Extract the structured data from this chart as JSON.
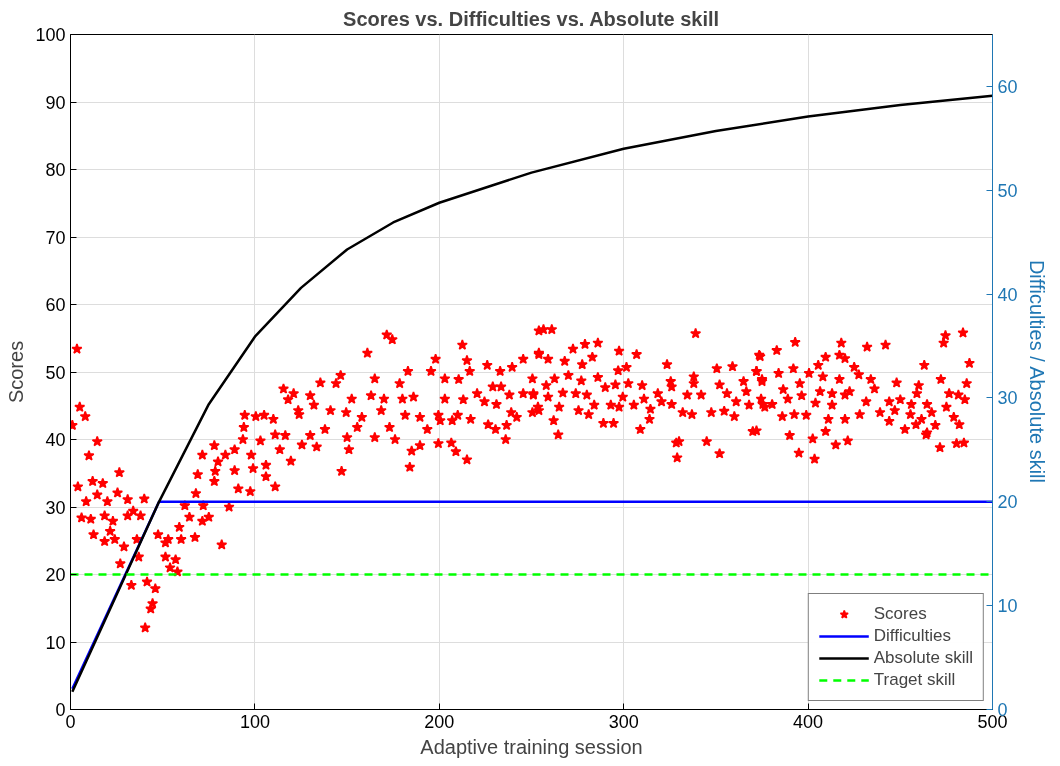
{
  "chart_data": {
    "type": "scatter",
    "title": "Scores vs. Difficulties vs. Absolute skill",
    "xlabel": "Adaptive training session",
    "ylabel": "Scores",
    "y2label": "Difficulties / Absolute skill",
    "xlim": [
      0,
      500
    ],
    "xticks": [
      0,
      100,
      200,
      300,
      400,
      500
    ],
    "ylim": [
      0,
      100
    ],
    "yticks": [
      0,
      10,
      20,
      30,
      40,
      50,
      60,
      70,
      80,
      90,
      100
    ],
    "y2lim": [
      0,
      65
    ],
    "y2ticks": [
      0,
      10,
      20,
      30,
      40,
      50,
      60
    ],
    "grid": true,
    "legend": "bottom right",
    "series": [
      {
        "name": "Scores",
        "color": "#ff0000",
        "marker": "star",
        "axis": "y",
        "x": [
          3.5,
          5,
          8,
          1,
          14.5,
          10,
          26.5,
          4,
          12,
          17.5,
          14.5,
          8.5,
          20,
          25.5,
          31,
          40,
          34,
          6,
          11,
          18.5,
          23,
          31,
          38,
          21.5,
          12.5,
          18.5,
          24,
          29,
          36,
          37,
          27,
          33,
          41.5,
          46,
          44.5,
          43.5,
          40.5,
          47.5,
          51.5,
          53,
          60,
          51.5,
          57,
          58,
          54,
          59,
          64.5,
          71.5,
          75,
          67.5,
          82,
          62,
          72,
          86,
          68,
          69,
          71.5,
          78,
          78.5,
          80,
          78,
          84,
          89,
          89,
          91,
          97.5,
          99,
          98,
          106,
          106,
          111,
          94,
          94.5,
          100.5,
          105,
          110,
          115.5,
          121,
          118,
          124,
          103,
          111,
          116.5,
          119.5,
          113.5,
          93.5,
          171.5,
          174.5,
          161,
          135.5,
          144,
          146.5,
          165,
          178.5,
          183,
          195.5,
          198,
          212.5,
          215,
          216.5,
          226,
          233,
          239.5,
          245.5,
          254,
          203,
          210.5,
          130,
          123.5,
          132,
          141,
          152.5,
          163,
          170,
          180,
          186,
          168.5,
          158,
          149.5,
          138,
          130,
          125.5,
          133.5,
          150,
          155.5,
          165,
          173,
          176,
          151,
          147,
          185,
          189.5,
          184,
          181.5,
          189.5,
          193.5,
          199.5,
          200.5,
          207,
          199.5,
          206.5,
          209,
          215,
          210,
          217,
          203,
          213,
          220.5,
          224.5,
          231,
          238,
          245.5,
          251,
          250.5,
          239,
          242,
          226.5,
          230.5,
          236.5,
          236,
          229,
          233.5,
          254,
          254,
          256.5,
          261,
          339,
          254,
          259,
          268,
          272.5,
          279,
          286,
          283,
          277.5,
          297.5,
          307,
          301.5,
          297,
          323.5,
          373.5,
          359,
          350.5,
          338,
          372,
          250.5,
          262.5,
          270,
          277,
          286,
          295.5,
          302.5,
          310,
          325.5,
          338,
          352,
          365,
          375,
          258,
          251,
          259,
          267,
          274,
          280,
          290,
          299.5,
          311,
          318.5,
          326,
          334.5,
          342,
          356,
          366.5,
          253.5,
          265,
          275.5,
          284,
          293,
          297.5,
          305.5,
          314.5,
          320.5,
          326,
          332,
          337,
          347.5,
          354.5,
          361,
          368,
          375.5,
          360,
          262,
          281,
          314,
          289,
          294.5,
          264.5,
          309,
          370,
          328.5,
          330,
          345,
          329,
          352,
          374,
          383,
          393,
          418,
          432,
          442,
          474.5,
          473.5,
          484,
          487.5,
          409.5,
          417,
          420,
          405.5,
          463,
          392,
          425,
          372,
          384,
          400.5,
          408,
          427.5,
          434,
          448,
          472,
          486,
          375,
          395.5,
          417,
          460,
          386.5,
          406.5,
          422.5,
          436,
          459,
          476.5,
          481.5,
          374.5,
          380.5,
          389,
          396.5,
          413,
          420,
          431.5,
          444,
          450,
          456,
          485,
          464.5,
          475,
          376.5,
          404,
          413,
          386,
          392.5,
          399,
          411,
          420,
          428,
          439,
          447,
          455.5,
          467,
          479,
          444,
          461.5,
          452.5,
          458.5,
          469,
          482,
          372,
          409.5,
          464.5,
          390,
          402.5,
          415,
          421.5,
          464,
          471.5,
          480.5,
          484.5,
          395,
          403.5
        ],
        "values": [
          53.4,
          44.8,
          43.4,
          42.1,
          39.7,
          37.6,
          35.1,
          33,
          33.8,
          33.5,
          31.8,
          30.8,
          30.8,
          32.1,
          31.1,
          31.2,
          29.4,
          28.4,
          28.2,
          28.7,
          27.9,
          28.7,
          28.7,
          26.4,
          25.9,
          24.9,
          25.2,
          24.1,
          25.2,
          22.6,
          21.6,
          18.4,
          18.9,
          17.9,
          15.7,
          14.9,
          12.1,
          25.9,
          24.7,
          25.2,
          25.2,
          22.6,
          22.2,
          20.4,
          21,
          27,
          28.5,
          27.9,
          28.5,
          25.5,
          24.4,
          30.2,
          30.2,
          30,
          32,
          34.8,
          37.7,
          33.8,
          35.3,
          36.7,
          39.1,
          37.7,
          38.5,
          35.4,
          32.7,
          32.3,
          35.7,
          37.7,
          36.2,
          34.5,
          33,
          41.8,
          43.6,
          43.4,
          43.6,
          43,
          47.5,
          46.8,
          45.9,
          43.7,
          39.8,
          40.7,
          40.6,
          36.8,
          38.5,
          40,
          55.5,
          54.8,
          52.8,
          48.4,
          48.3,
          49.5,
          49,
          48.3,
          50.1,
          50.1,
          51.9,
          54,
          51.7,
          50.1,
          51,
          50.1,
          50.7,
          51.9,
          52.8,
          49,
          48.9,
          46.5,
          44.3,
          45.1,
          44.3,
          46,
          46.5,
          46,
          46,
          46.3,
          44.3,
          43.3,
          44,
          41.5,
          40.6,
          39.2,
          38.9,
          40.3,
          41.8,
          40.3,
          41.8,
          40,
          38.5,
          35.3,
          38.3,
          39.1,
          35.9,
          43.6,
          43.3,
          41.5,
          43.6,
          42.8,
          42.8,
          39.4,
          39.5,
          38.2,
          37,
          43.6,
          43,
          46,
          45.9,
          46.8,
          45.6,
          45.2,
          46.6,
          46.8,
          46.6,
          44,
          44,
          43.3,
          42.2,
          41.5,
          42.1,
          40,
          47.8,
          47.8,
          56.1,
          44.3,
          56.3,
          56.3,
          55.7,
          52.6,
          51.9,
          51.6,
          53.4,
          54.1,
          54.3,
          52.2,
          51.1,
          53.1,
          52.6,
          50.7,
          50.2,
          51.1,
          52.5,
          50.8,
          50.5,
          49.3,
          50.1,
          49,
          49,
          49.5,
          48.7,
          49.2,
          48.1,
          48.3,
          48,
          48.6,
          48.3,
          48.1,
          48.6,
          48.9,
          48,
          46.8,
          46.3,
          46.9,
          46.8,
          46.6,
          47.7,
          46.3,
          46,
          46.8,
          47.8,
          46.6,
          46.6,
          46.8,
          47.1,
          44.8,
          44.8,
          44.3,
          45.1,
          45.1,
          44.8,
          45.1,
          44.5,
          45.6,
          45.2,
          44,
          43.7,
          44,
          44.2,
          45.6,
          45.1,
          45.2,
          43.4,
          42.8,
          43.7,
          43,
          42.4,
          42.4,
          40.7,
          41.5,
          41.2,
          39.5,
          39.7,
          39.7,
          37.3,
          37.9,
          52.3,
          53.2,
          54.4,
          54.3,
          53.7,
          54,
          55.4,
          54.3,
          55.8,
          51.3,
          52.2,
          52.5,
          52,
          51,
          51,
          50.5,
          50.7,
          50.1,
          49.8,
          49.8,
          49.3,
          49.6,
          48.9,
          48.4,
          48.9,
          48.3,
          48.6,
          48.3,
          48.9,
          48,
          47.4,
          47.1,
          47.1,
          47.5,
          46.8,
          46.8,
          46.6,
          46,
          45.2,
          46,
          46.5,
          46.8,
          46.6,
          45.6,
          45.6,
          45.9,
          45.2,
          45.9,
          45.2,
          44.8,
          44.8,
          45.4,
          45.1,
          43.4,
          43.7,
          43.6,
          43,
          43,
          43.7,
          44,
          44.3,
          43.7,
          44,
          43.3,
          42.7,
          43,
          41.5,
          42.2,
          42.1,
          42.2,
          41.3,
          41.2,
          41,
          40.6,
          40.1,
          39.2,
          39.8,
          40.7,
          38.8,
          39.4,
          39.5,
          38,
          37.1
        ]
      },
      {
        "name": "Difficulties",
        "type": "line",
        "color": "#0000ff",
        "axis": "y2",
        "x": [
          1,
          48,
          500
        ],
        "values": [
          2,
          20,
          20
        ]
      },
      {
        "name": "Absolute skill",
        "type": "line",
        "color": "#000000",
        "axis": "y2",
        "x": [
          1,
          30,
          48,
          75,
          100,
          125,
          150,
          175,
          200,
          250,
          300,
          350,
          400,
          450,
          500
        ],
        "values": [
          1.7,
          13,
          20,
          29.4,
          35.9,
          40.6,
          44.3,
          46.9,
          48.8,
          51.7,
          54,
          55.7,
          57.1,
          58.2,
          59.1
        ]
      },
      {
        "name": "Traget skill",
        "type": "line",
        "color": "#00ff00",
        "line_style": "dashed",
        "axis": "y",
        "x": [
          0,
          500
        ],
        "values": [
          20,
          20
        ]
      }
    ]
  }
}
